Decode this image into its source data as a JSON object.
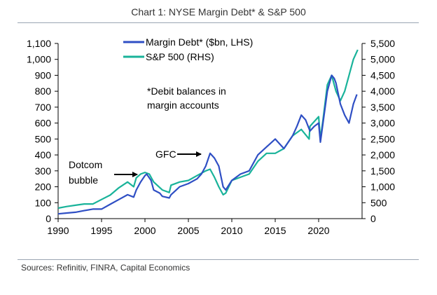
{
  "title": "Chart 1: NYSE Margin Debt* & S&P 500",
  "source": "Sources: Refinitiv, FINRA, Capital Economics",
  "colors": {
    "margin_debt": "#2f4fc4",
    "sp500": "#19b39a",
    "axis": "#000000",
    "text": "#000000"
  },
  "chart_data": {
    "type": "line",
    "title": "Chart 1: NYSE Margin Debt* & S&P 500",
    "xlabel": "",
    "x_ticks": [
      1990,
      1995,
      2000,
      2005,
      2010,
      2015,
      2020
    ],
    "xlim": [
      1990,
      2025
    ],
    "left_axis": {
      "label": "Margin Debt* ($bn, LHS)",
      "ylim": [
        0,
        1100
      ],
      "ticks": [
        "0",
        "100",
        "200",
        "300",
        "400",
        "500",
        "600",
        "700",
        "800",
        "900",
        "1,000",
        "1,100"
      ]
    },
    "right_axis": {
      "label": "S&P 500 (RHS)",
      "ylim": [
        0,
        5500
      ],
      "ticks": [
        "0",
        "500",
        "1,000",
        "1,500",
        "2,000",
        "2,500",
        "3,000",
        "3,500",
        "4,000",
        "4,500",
        "5,000",
        "5,500"
      ]
    },
    "legend": [
      "Margin Debt* ($bn, LHS)",
      "S&P 500 (RHS)"
    ],
    "legend_position": "top-center",
    "series": [
      {
        "name": "Margin Debt* ($bn, LHS)",
        "axis": "left",
        "x": [
          1990,
          1991,
          1992,
          1993,
          1994,
          1995,
          1996,
          1997,
          1998,
          1998.7,
          1999,
          1999.5,
          2000,
          2000.2,
          2000.7,
          2001,
          2001.7,
          2002,
          2002.8,
          2003,
          2004,
          2005,
          2006,
          2006.5,
          2007,
          2007.5,
          2008,
          2008.5,
          2009,
          2009.3,
          2010,
          2011,
          2012,
          2013,
          2014,
          2015,
          2015.5,
          2016,
          2017,
          2017.5,
          2018,
          2018.5,
          2019,
          2019.5,
          2020,
          2020.2,
          2020.5,
          2021,
          2021.5,
          2021.8,
          2022,
          2022.5,
          2023,
          2023.5,
          2024,
          2024.4
        ],
        "values": [
          30,
          35,
          40,
          50,
          60,
          60,
          90,
          120,
          150,
          135,
          180,
          230,
          270,
          280,
          240,
          180,
          160,
          140,
          130,
          150,
          200,
          220,
          250,
          280,
          330,
          410,
          380,
          330,
          200,
          180,
          240,
          280,
          300,
          400,
          450,
          500,
          470,
          440,
          520,
          580,
          650,
          620,
          550,
          580,
          600,
          480,
          600,
          800,
          900,
          880,
          850,
          720,
          650,
          600,
          720,
          780
        ]
      },
      {
        "name": "S&P 500 (RHS)",
        "axis": "right",
        "x": [
          1990,
          1991,
          1992,
          1993,
          1994,
          1995,
          1996,
          1997,
          1998,
          1998.7,
          1999,
          1999.5,
          2000,
          2000.5,
          2001,
          2002,
          2002.8,
          2003,
          2004,
          2005,
          2006,
          2007,
          2007.5,
          2008,
          2008.5,
          2009,
          2009.3,
          2010,
          2011,
          2012,
          2013,
          2014,
          2015,
          2016,
          2017,
          2018,
          2018.9,
          2019,
          2020,
          2020.2,
          2020.5,
          2021,
          2021.5,
          2022,
          2022.5,
          2023,
          2023.5,
          2024,
          2024.5
        ],
        "values": [
          330,
          380,
          420,
          460,
          460,
          600,
          740,
          970,
          1150,
          1000,
          1280,
          1400,
          1450,
          1400,
          1150,
          900,
          820,
          1050,
          1150,
          1200,
          1350,
          1500,
          1550,
          1300,
          1000,
          750,
          800,
          1200,
          1300,
          1400,
          1800,
          2050,
          2050,
          2200,
          2600,
          2800,
          2500,
          2900,
          3200,
          2500,
          3100,
          4200,
          4500,
          4000,
          3700,
          4000,
          4500,
          5000,
          5300
        ]
      }
    ],
    "annotations": [
      {
        "text": "*Debit balances in margin accounts",
        "lines": [
          "*Debit balances in",
          "margin accounts"
        ]
      },
      {
        "text": "Dotcom bubble",
        "lines": [
          "Dotcom",
          "bubble"
        ],
        "arrow_to": 2000
      },
      {
        "text": "GFC",
        "lines": [
          "GFC"
        ],
        "arrow_to": 2007
      }
    ]
  }
}
